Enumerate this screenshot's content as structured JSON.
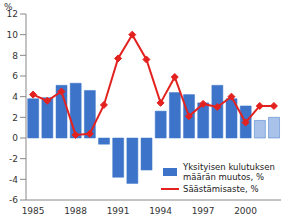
{
  "chart_data": {
    "type": "bar",
    "y_label": "%",
    "categories": [
      "1985",
      null,
      null,
      "1988",
      null,
      null,
      "1991",
      null,
      null,
      "1994",
      null,
      null,
      "1997",
      null,
      null,
      "2000",
      null,
      null
    ],
    "series": [
      {
        "name": "Yksityisen kulutuksen määrän muutos, %",
        "type": "bar",
        "color": "#3d74c9",
        "colors": [
          "#3d74c9",
          "#3d74c9",
          "#3d74c9",
          "#3d74c9",
          "#3d74c9",
          "#3d74c9",
          "#3d74c9",
          "#3d74c9",
          "#3d74c9",
          "#3d74c9",
          "#3d74c9",
          "#3d74c9",
          "#3d74c9",
          "#3d74c9",
          "#3d74c9",
          "#3d74c9",
          "#a9c2ea",
          "#a9c2ea"
        ],
        "values": [
          3.8,
          3.9,
          5.1,
          5.3,
          4.6,
          -0.6,
          -3.8,
          -4.4,
          -3.1,
          2.6,
          4.4,
          4.2,
          3.4,
          5.1,
          3.8,
          3.1,
          1.7,
          2.0
        ]
      },
      {
        "name": "Säästämisaste, %",
        "type": "line",
        "color": "#e32220",
        "marker": "diamond",
        "values": [
          4.2,
          3.6,
          4.5,
          0.3,
          0.4,
          3.2,
          7.7,
          10.0,
          7.6,
          3.4,
          5.9,
          2.1,
          3.3,
          3.0,
          4.0,
          1.5,
          3.1,
          3.1
        ]
      }
    ],
    "ylim": [
      -6,
      12
    ],
    "yticks": [
      -6,
      -4,
      -2,
      0,
      2,
      4,
      6,
      8,
      10,
      12
    ],
    "grid": false,
    "legend": "lower right"
  }
}
